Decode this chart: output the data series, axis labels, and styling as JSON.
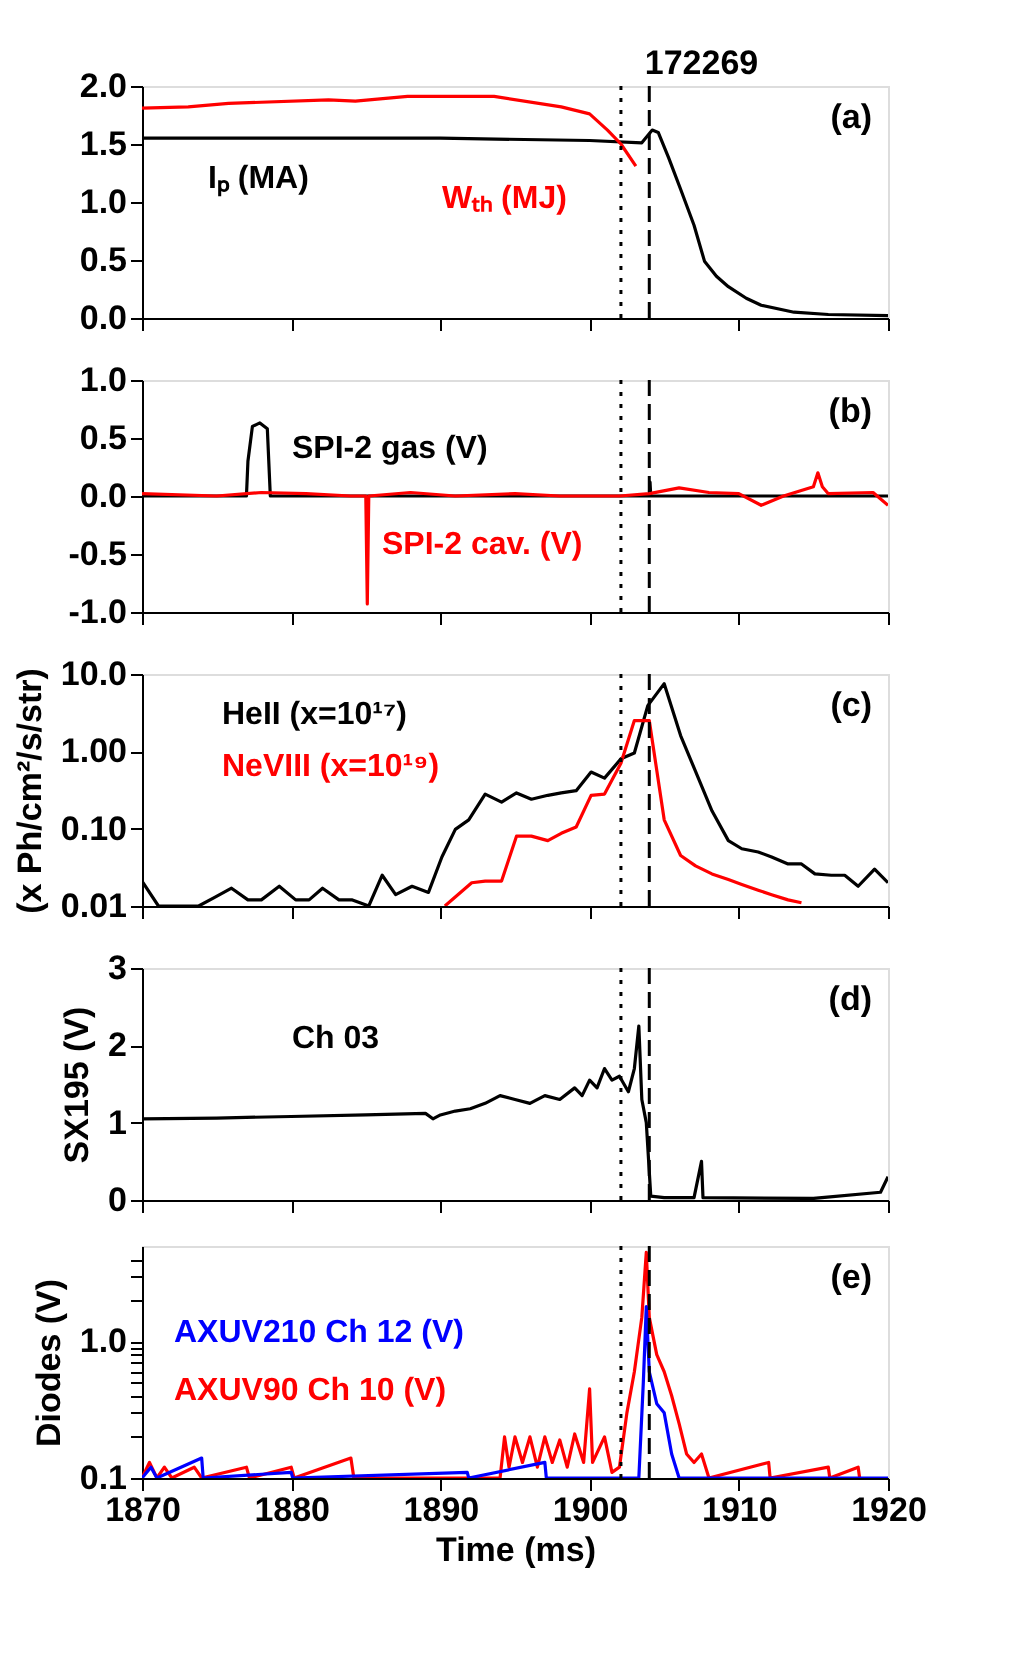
{
  "chart_data": [
    {
      "type": "line",
      "annotations": [
        "172269",
        "(a)"
      ],
      "xlim": [
        1870,
        1920
      ],
      "xticks": [
        1870,
        1880,
        1890,
        1900,
        1910,
        1920
      ],
      "ylim": [
        0,
        2
      ],
      "yticks": [
        {
          "value": 0,
          "label": "0.0"
        },
        {
          "value": 0.5,
          "label": "0.5"
        },
        {
          "value": 1,
          "label": "1.0"
        },
        {
          "value": 1.5,
          "label": "1.5"
        },
        {
          "value": 2,
          "label": "2.0"
        }
      ],
      "tick_labels": "y",
      "legend": false,
      "grid": false,
      "ref_lines": [
        {
          "axis": "x",
          "value": 1902.1,
          "line_style": "dotted"
        },
        {
          "axis": "x",
          "value": 1904,
          "line_style": "dashed"
        }
      ],
      "series": [
        {
          "name": "Iₚ (MA)",
          "color": "#000000",
          "x": [
            1870,
            1880,
            1890,
            1900,
            1903.5,
            1904.2,
            1904.6,
            1905.3,
            1906.1,
            1907,
            1907.7,
            1908.5,
            1909.3,
            1910.5,
            1911.5,
            1913.7,
            1916,
            1920
          ],
          "values": [
            1.55,
            1.55,
            1.55,
            1.53,
            1.51,
            1.62,
            1.6,
            1.38,
            1.11,
            0.8,
            0.49,
            0.36,
            0.27,
            0.17,
            0.11,
            0.05,
            0.03,
            0.02
          ]
        },
        {
          "name": "Wₜₕ (MJ)",
          "color": "#ff0000",
          "x": [
            1870,
            1873.1,
            1875.8,
            1882.5,
            1884.3,
            1887.8,
            1893.6,
            1898.1,
            1900,
            1901.2,
            1902.1,
            1903.1
          ],
          "values": [
            1.81,
            1.82,
            1.85,
            1.88,
            1.87,
            1.91,
            1.91,
            1.82,
            1.76,
            1.62,
            1.5,
            1.31
          ]
        }
      ]
    },
    {
      "type": "line",
      "annotations": [
        "(b)"
      ],
      "xlim": [
        1870,
        1920
      ],
      "xticks": [
        1870,
        1880,
        1890,
        1900,
        1910,
        1920
      ],
      "ylim": [
        -1,
        1
      ],
      "yticks": [
        {
          "value": -1,
          "label": "-1.0"
        },
        {
          "value": -0.5,
          "label": "-0.5"
        },
        {
          "value": 0,
          "label": "0.0"
        },
        {
          "value": 0.5,
          "label": "0.5"
        },
        {
          "value": 1,
          "label": "1.0"
        }
      ],
      "tick_labels": "y",
      "legend": false,
      "grid": false,
      "ref_lines": [
        {
          "axis": "x",
          "value": 1902.1,
          "line_style": "dotted"
        },
        {
          "axis": "x",
          "value": 1904,
          "line_style": "dashed"
        }
      ],
      "series": [
        {
          "name": "SPI-2 gas (V)",
          "color": "#000000",
          "x": [
            1870,
            1877,
            1877.1,
            1877.4,
            1877.9,
            1878.4,
            1878.6,
            1904,
            1904.05,
            1904.1,
            1920
          ],
          "values": [
            0,
            0,
            0.3,
            0.6,
            0.63,
            0.58,
            0,
            0,
            0.12,
            0,
            0
          ]
        },
        {
          "name": "SPI-2 cav. (V)",
          "color": "#ff0000",
          "x": [
            1870,
            1875,
            1878,
            1881,
            1884,
            1885,
            1885.1,
            1885.2,
            1888,
            1891,
            1895,
            1898,
            1902,
            1904,
            1906,
            1908,
            1910,
            1911.5,
            1913,
            1915,
            1915.3,
            1915.6,
            1916,
            1919,
            1920
          ],
          "values": [
            0.02,
            0,
            0.03,
            0.02,
            0,
            0,
            -0.93,
            0,
            0.03,
            0,
            0.02,
            0,
            0,
            0.02,
            0.07,
            0.03,
            0.02,
            -0.08,
            0,
            0.08,
            0.2,
            0.08,
            0.02,
            0.03,
            -0.08
          ]
        }
      ]
    },
    {
      "type": "line",
      "annotations": [
        "(c)"
      ],
      "ylabel": "(x Ph/cm²/s/str)",
      "log": "y",
      "xlim": [
        1870,
        1920
      ],
      "xticks": [
        1870,
        1880,
        1890,
        1900,
        1910,
        1920
      ],
      "ylim": [
        0.01,
        10
      ],
      "yticks": [
        0.01,
        {
          "value": 0.1,
          "label": "0.10"
        },
        {
          "value": 1,
          "label": "1.00"
        },
        {
          "value": 10,
          "label": "10.0"
        }
      ],
      "tick_labels": "y",
      "legend": false,
      "grid": false,
      "ref_lines": [
        {
          "axis": "x",
          "value": 1902.1,
          "line_style": "dotted"
        },
        {
          "axis": "x",
          "value": 1904,
          "line_style": "dashed"
        }
      ],
      "series": [
        {
          "name": "HeII (x=10¹⁷)",
          "color": "#000000",
          "x": [
            1870,
            1871.1,
            1873.8,
            1874.9,
            1876,
            1877.1,
            1878,
            1879.2,
            1880.3,
            1881.2,
            1882.1,
            1883.2,
            1884.1,
            1885.2,
            1886.1,
            1887,
            1888.1,
            1889.2,
            1890.1,
            1891,
            1891.9,
            1893,
            1894.1,
            1895.1,
            1896.1,
            1897.2,
            1898.1,
            1899.1,
            1900.1,
            1901,
            1902.1,
            1903,
            1903.9,
            1905,
            1906.1,
            1907.1,
            1908.2,
            1909.3,
            1910.2,
            1911.3,
            1912.2,
            1913.3,
            1914.2,
            1915.1,
            1916.2,
            1917.1,
            1918,
            1919.1,
            1920
          ],
          "values": [
            0.021,
            0.01,
            0.01,
            0.013,
            0.017,
            0.012,
            0.012,
            0.018,
            0.012,
            0.012,
            0.017,
            0.012,
            0.012,
            0.01,
            0.025,
            0.014,
            0.018,
            0.015,
            0.043,
            0.098,
            0.13,
            0.28,
            0.22,
            0.29,
            0.24,
            0.27,
            0.29,
            0.31,
            0.54,
            0.45,
            0.8,
            0.95,
            3.9,
            7.5,
            1.6,
            0.55,
            0.17,
            0.07,
            0.055,
            0.05,
            0.043,
            0.035,
            0.035,
            0.026,
            0.025,
            0.025,
            0.018,
            0.03,
            0.02
          ]
        },
        {
          "name": "NeVIII (x=10¹⁹)",
          "color": "#ff0000",
          "x": [
            1890.3,
            1892.1,
            1893,
            1894.1,
            1895.1,
            1896.1,
            1897.2,
            1898.1,
            1899.1,
            1900.1,
            1901,
            1902.1,
            1903,
            1904,
            1905,
            1906.1,
            1907.1,
            1908.2,
            1909.3,
            1910.2,
            1911.3,
            1912.2,
            1913.3,
            1914.2
          ],
          "values": [
            0.01,
            0.02,
            0.021,
            0.021,
            0.08,
            0.08,
            0.07,
            0.087,
            0.105,
            0.27,
            0.28,
            0.7,
            2.5,
            2.5,
            0.13,
            0.045,
            0.033,
            0.026,
            0.022,
            0.019,
            0.016,
            0.014,
            0.012,
            0.011
          ]
        }
      ]
    },
    {
      "type": "line",
      "annotations": [
        "(d)"
      ],
      "ylabel": "SX195 (V)",
      "xlim": [
        1870,
        1920
      ],
      "xticks": [
        1870,
        1880,
        1890,
        1900,
        1910,
        1920
      ],
      "ylim": [
        0,
        3
      ],
      "yticks": [
        0,
        1,
        2,
        3
      ],
      "tick_labels": "y",
      "legend": false,
      "grid": false,
      "ref_lines": [
        {
          "axis": "x",
          "value": 1902.1,
          "line_style": "dotted"
        },
        {
          "axis": "x",
          "value": 1904,
          "line_style": "dashed"
        }
      ],
      "series": [
        {
          "name": "Ch 03",
          "color": "#000000",
          "x": [
            1870,
            1875,
            1880,
            1885,
            1889,
            1889.5,
            1890,
            1891,
            1892,
            1893,
            1894,
            1895,
            1896,
            1897,
            1898,
            1899,
            1899.5,
            1900,
            1900.5,
            1901,
            1901.5,
            1902,
            1902.6,
            1903,
            1903.3,
            1903.5,
            1903.8,
            1904.1,
            1905,
            1907,
            1907.5,
            1907.6,
            1915,
            1919.5,
            1920
          ],
          "values": [
            1.05,
            1.06,
            1.08,
            1.1,
            1.12,
            1.05,
            1.1,
            1.15,
            1.18,
            1.25,
            1.35,
            1.3,
            1.25,
            1.35,
            1.3,
            1.45,
            1.35,
            1.55,
            1.45,
            1.7,
            1.55,
            1.6,
            1.4,
            1.7,
            2.25,
            1.3,
            1.0,
            0.05,
            0.03,
            0.03,
            0.5,
            0.03,
            0.02,
            0.1,
            0.3
          ]
        }
      ]
    },
    {
      "type": "line",
      "annotations": [
        "(e)"
      ],
      "xlabel": "Time (ms)",
      "ylabel": "Diodes (V)",
      "log": "y",
      "xlim": [
        1870,
        1920
      ],
      "xticks": [
        1870,
        1880,
        1890,
        1900,
        1910,
        1920
      ],
      "ylim": [
        0.1,
        5
      ],
      "yticks": [
        0.1,
        {
          "value": 0.2,
          "label": null
        },
        {
          "value": 0.3,
          "label": null
        },
        {
          "value": 0.4,
          "label": null
        },
        {
          "value": 0.5,
          "label": null
        },
        {
          "value": 0.6,
          "label": null
        },
        {
          "value": 0.7,
          "label": null
        },
        {
          "value": 0.8,
          "label": null
        },
        {
          "value": 0.9,
          "label": null
        },
        {
          "value": 1,
          "label": "1.0"
        },
        {
          "value": 2,
          "label": null
        },
        {
          "value": 3,
          "label": null
        },
        {
          "value": 4,
          "label": null
        }
      ],
      "legend": false,
      "grid": false,
      "ref_lines": [
        {
          "axis": "x",
          "value": 1902.1,
          "line_style": "dotted"
        },
        {
          "axis": "x",
          "value": 1904,
          "line_style": "dashed"
        }
      ],
      "series": [
        {
          "name": "AXUV90 Ch 10 (V)",
          "color": "#ff0000",
          "x": [
            1870,
            1870.5,
            1871,
            1871.5,
            1872,
            1873.5,
            1874,
            1877,
            1877.2,
            1880,
            1880.2,
            1884,
            1884.2,
            1894,
            1894.3,
            1894.6,
            1895,
            1895.5,
            1896,
            1896.5,
            1897,
            1897.5,
            1898,
            1898.5,
            1899,
            1899.6,
            1900,
            1900.2,
            1901,
            1901.5,
            1902,
            1902.5,
            1903,
            1903.5,
            1903.8,
            1904,
            1904.5,
            1905,
            1905.5,
            1906,
            1906.5,
            1907,
            1907.5,
            1908,
            1912,
            1912.1,
            1916,
            1916.1,
            1918,
            1918.1
          ],
          "values": [
            0.1,
            0.13,
            0.1,
            0.12,
            0.1,
            0.12,
            0.1,
            0.12,
            0.1,
            0.12,
            0.1,
            0.14,
            0.1,
            0.1,
            0.2,
            0.12,
            0.2,
            0.13,
            0.2,
            0.12,
            0.2,
            0.13,
            0.19,
            0.12,
            0.21,
            0.13,
            0.45,
            0.13,
            0.2,
            0.11,
            0.12,
            0.3,
            0.6,
            1.5,
            4.5,
            1.5,
            0.8,
            0.6,
            0.4,
            0.25,
            0.15,
            0.13,
            0.15,
            0.1,
            0.13,
            0.1,
            0.12,
            0.1,
            0.12,
            0.1
          ]
        },
        {
          "name": "AXUV210 Ch 12 (V)",
          "color": "#0000ff",
          "x": [
            1870,
            1870.6,
            1871,
            1874,
            1874.1,
            1880,
            1880.1,
            1891.8,
            1891.9,
            1897,
            1897.1,
            1903.3,
            1903.6,
            1903.8,
            1904,
            1904.5,
            1905,
            1905.5,
            1906,
            1920
          ],
          "values": [
            0.1,
            0.12,
            0.1,
            0.14,
            0.1,
            0.11,
            0.1,
            0.11,
            0.1,
            0.13,
            0.1,
            0.1,
            0.5,
            1.8,
            0.6,
            0.35,
            0.3,
            0.15,
            0.1,
            0.1
          ]
        }
      ]
    }
  ]
}
